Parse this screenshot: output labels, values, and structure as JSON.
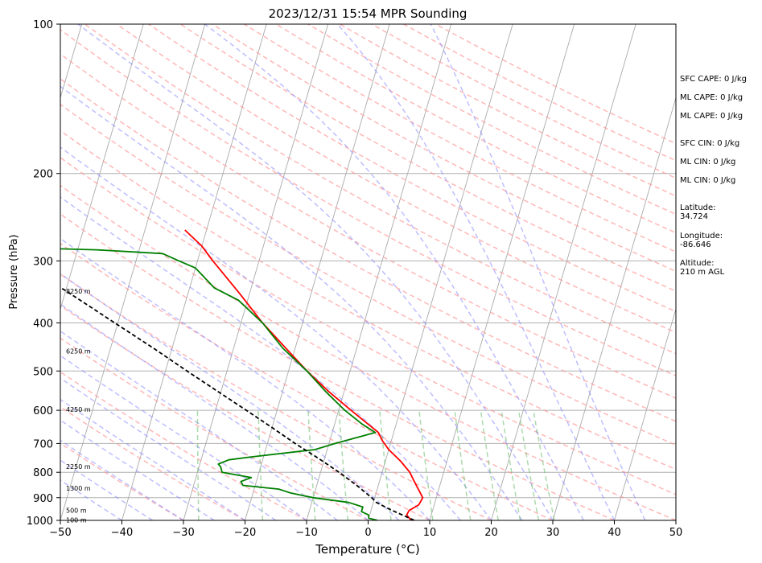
{
  "chart_data": {
    "type": "line",
    "title": "2023/12/31 15:54 MPR Sounding",
    "xlabel": "Temperature (°C)",
    "ylabel": "Pressure (hPa)",
    "x_scale": "linear",
    "y_scale": "log (inverted)",
    "xlim": [
      -50,
      50
    ],
    "ylim": [
      1000,
      100
    ],
    "x_ticks": [
      "−50",
      "−40",
      "−30",
      "−20",
      "−10",
      "0",
      "10",
      "20",
      "30",
      "40",
      "50"
    ],
    "y_ticks": [
      "1000",
      "900",
      "800",
      "700",
      "600",
      "500",
      "400",
      "300",
      "200",
      "100"
    ],
    "grid": "horizontal at pressure ticks, skewed isotherms every 10 °C",
    "background_lines": {
      "dry_adiabats": "red dashed",
      "moist_adiabats": "blue dashed",
      "mixing_ratio": "green dashed",
      "isotherms": "gray solid, skewed"
    },
    "series": [
      {
        "color": "#ff0000",
        "style": "solid",
        "points": [
          {
            "p": 1000,
            "t": 7.0
          },
          {
            "p": 975,
            "t": 6.0
          },
          {
            "p": 955,
            "t": 6.2
          },
          {
            "p": 930,
            "t": 7.5
          },
          {
            "p": 900,
            "t": 7.8
          },
          {
            "p": 860,
            "t": 6.5
          },
          {
            "p": 830,
            "t": 5.5
          },
          {
            "p": 800,
            "t": 4.5
          },
          {
            "p": 760,
            "t": 2.5
          },
          {
            "p": 720,
            "t": 0.0
          },
          {
            "p": 690,
            "t": -1.5
          },
          {
            "p": 665,
            "t": -2.5
          },
          {
            "p": 600,
            "t": -8.0
          },
          {
            "p": 550,
            "t": -12.5
          },
          {
            "p": 500,
            "t": -17.0
          },
          {
            "p": 450,
            "t": -21.5
          },
          {
            "p": 400,
            "t": -26.5
          },
          {
            "p": 350,
            "t": -31.5
          },
          {
            "p": 300,
            "t": -37.5
          },
          {
            "p": 280,
            "t": -40.0
          },
          {
            "p": 260,
            "t": -43.5
          }
        ]
      },
      {
        "color": "#008000",
        "style": "solid",
        "points": [
          {
            "p": 1000,
            "t": 1.5
          },
          {
            "p": 990,
            "t": 0.0
          },
          {
            "p": 975,
            "t": -0.2
          },
          {
            "p": 960,
            "t": -1.5
          },
          {
            "p": 940,
            "t": -1.5
          },
          {
            "p": 920,
            "t": -4.0
          },
          {
            "p": 900,
            "t": -10.0
          },
          {
            "p": 880,
            "t": -14.0
          },
          {
            "p": 865,
            "t": -16.0
          },
          {
            "p": 850,
            "t": -22.0
          },
          {
            "p": 835,
            "t": -22.5
          },
          {
            "p": 820,
            "t": -21.0
          },
          {
            "p": 800,
            "t": -26.0
          },
          {
            "p": 780,
            "t": -26.5
          },
          {
            "p": 770,
            "t": -27.0
          },
          {
            "p": 755,
            "t": -25.5
          },
          {
            "p": 745,
            "t": -22.0
          },
          {
            "p": 720,
            "t": -12.0
          },
          {
            "p": 700,
            "t": -9.0
          },
          {
            "p": 665,
            "t": -3.0
          },
          {
            "p": 640,
            "t": -5.5
          },
          {
            "p": 600,
            "t": -9.0
          },
          {
            "p": 550,
            "t": -13.0
          },
          {
            "p": 500,
            "t": -17.0
          },
          {
            "p": 450,
            "t": -22.0
          },
          {
            "p": 400,
            "t": -26.5
          },
          {
            "p": 360,
            "t": -31.5
          },
          {
            "p": 340,
            "t": -36.0
          },
          {
            "p": 310,
            "t": -40.0
          },
          {
            "p": 300,
            "t": -43.0
          },
          {
            "p": 290,
            "t": -46.0
          },
          {
            "p": 285,
            "t": -57.0
          },
          {
            "p": 281,
            "t": -75.0
          }
        ]
      },
      {
        "color": "#000000",
        "style": "dashed",
        "points": [
          {
            "p": 1000,
            "t": 7.5
          },
          {
            "p": 950,
            "t": 3.0
          },
          {
            "p": 920,
            "t": 0.5
          },
          {
            "p": 900,
            "t": -0.5
          },
          {
            "p": 850,
            "t": -3.5
          },
          {
            "p": 800,
            "t": -7.0
          },
          {
            "p": 750,
            "t": -11.0
          },
          {
            "p": 700,
            "t": -15.5
          },
          {
            "p": 650,
            "t": -20.0
          },
          {
            "p": 600,
            "t": -25.0
          },
          {
            "p": 550,
            "t": -30.5
          },
          {
            "p": 500,
            "t": -36.5
          },
          {
            "p": 450,
            "t": -43.0
          },
          {
            "p": 400,
            "t": -50.5
          },
          {
            "p": 350,
            "t": -59.0
          },
          {
            "p": 300,
            "t": -69.0
          },
          {
            "p": 270,
            "t": -76.0
          }
        ]
      }
    ],
    "height_labels": [
      {
        "p": 998,
        "text": "100 m"
      },
      {
        "p": 955,
        "text": "500 m"
      },
      {
        "p": 862,
        "text": "1300 m"
      },
      {
        "p": 779,
        "text": "2250 m"
      },
      {
        "p": 598,
        "text": "4250 m"
      },
      {
        "p": 456,
        "text": "6250 m"
      },
      {
        "p": 345,
        "text": "8250 m"
      }
    ]
  },
  "info": {
    "sfc_cape": "SFC CAPE: 0 J/kg",
    "ml_cape_1": "ML CAPE: 0 J/kg",
    "ml_cape_2": "ML CAPE: 0 J/kg",
    "sfc_cin": "SFC CIN: 0 J/kg",
    "ml_cin_1": "ML CIN: 0 J/kg",
    "ml_cin_2": "ML CIN: 0 J/kg",
    "latitude": "Latitude:\n34.724",
    "longitude": "Longitude:\n-86.646",
    "altitude": "Altitude:\n210 m AGL"
  }
}
